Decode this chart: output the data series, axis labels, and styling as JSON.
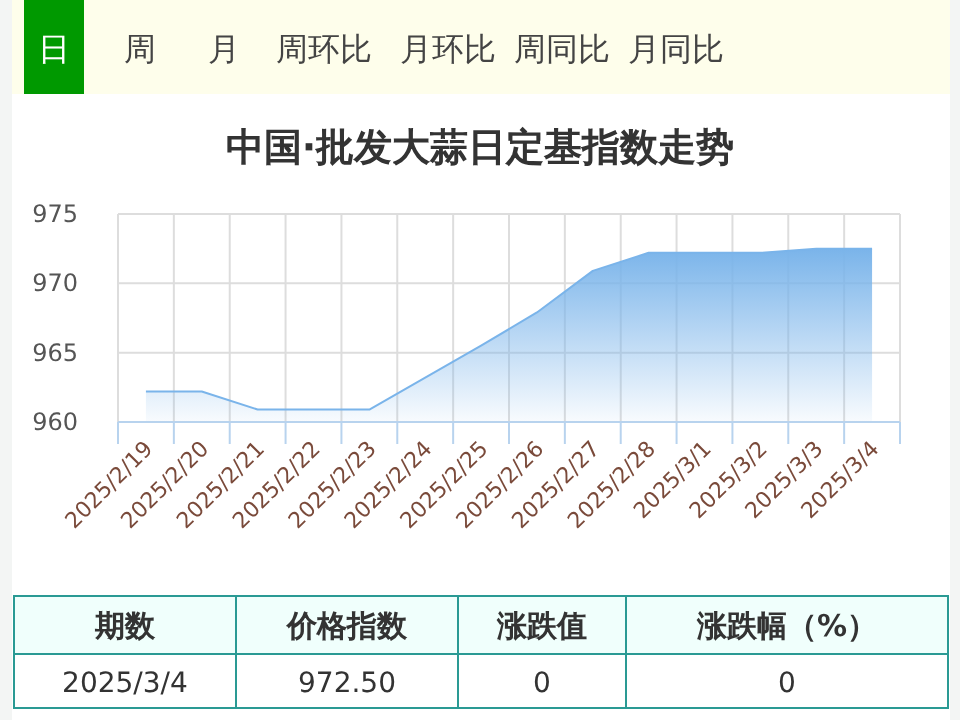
{
  "chart_data": {
    "type": "area",
    "title": "中国·批发大蒜日定基指数走势",
    "categories": [
      "2025/2/19",
      "2025/2/20",
      "2025/2/21",
      "2025/2/22",
      "2025/2/23",
      "2025/2/24",
      "2025/2/25",
      "2025/2/26",
      "2025/2/27",
      "2025/2/28",
      "2025/3/1",
      "2025/3/2",
      "2025/3/3",
      "2025/3/4"
    ],
    "series": [
      {
        "color": "#7ab4ea",
        "values": [
          962.2,
          962.2,
          960.9,
          960.9,
          960.9,
          963.2,
          965.5,
          967.9,
          970.9,
          972.2,
          972.2,
          972.2,
          972.5,
          972.5
        ]
      }
    ],
    "ylim": [
      960,
      975
    ],
    "yticks": [
      960,
      965,
      970,
      975
    ],
    "grid": true,
    "marker": "none",
    "annotations": [
      "日",
      "周",
      "月",
      "周环比",
      "月环比",
      "周同比",
      "月同比",
      "期数",
      "价格指数",
      "涨跌值",
      "涨跌幅（%）",
      "2025/3/4",
      "972.50",
      "0",
      "0"
    ]
  }
}
